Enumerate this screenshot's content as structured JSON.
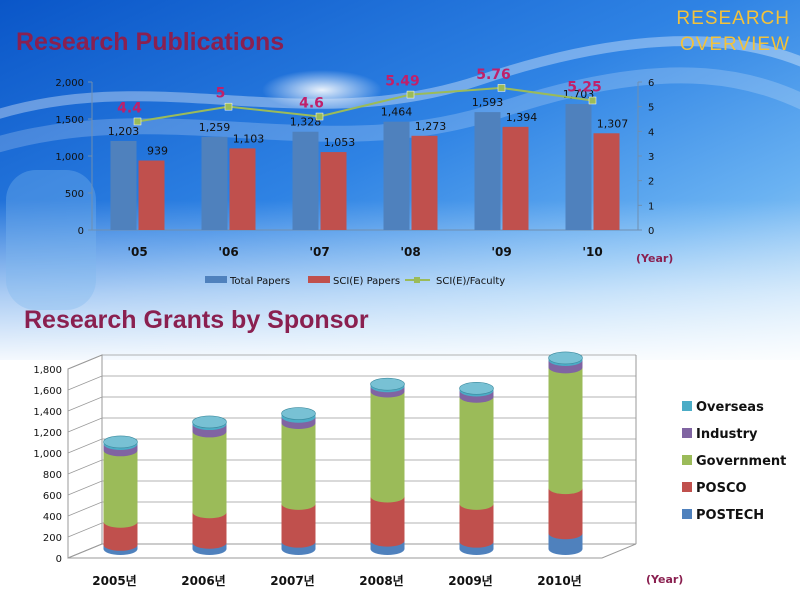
{
  "header": {
    "overview_line1": "RESEARCH",
    "overview_line2": "OVERVIEW"
  },
  "colors": {
    "total": "#4f81bd",
    "sci": "#c0504d",
    "faculty": "#9bbb59",
    "faculty_label": "#c0206a",
    "postech": "#4f81bd",
    "posco": "#c0504d",
    "government": "#9bbb59",
    "industry": "#8064a2",
    "overseas": "#4bacc6",
    "title": "#8a2050",
    "year_label": "#8a2050"
  },
  "chart_data": [
    {
      "type": "bar",
      "title": "Research Publications",
      "categories": [
        "'05",
        "'06",
        "'07",
        "'08",
        "'09",
        "'10"
      ],
      "xlabel": "(Year)",
      "ylim": [
        0,
        2000
      ],
      "yticks": [
        "0",
        "500",
        "1,000",
        "1,500",
        "2,000"
      ],
      "y2lim": [
        0,
        6
      ],
      "y2ticks": [
        "0",
        "1",
        "2",
        "3",
        "4",
        "5",
        "6"
      ],
      "series": [
        {
          "name": "Total Papers",
          "type": "bar",
          "values": [
            1203,
            1259,
            1328,
            1464,
            1593,
            1703
          ],
          "labels": [
            "1,203",
            "1,259",
            "1,328",
            "1,464",
            "1,593",
            "1,703"
          ]
        },
        {
          "name": "SCI(E) Papers",
          "type": "bar",
          "values": [
            939,
            1103,
            1053,
            1273,
            1394,
            1307
          ],
          "labels": [
            "939",
            "1,103",
            "1,053",
            "1,273",
            "1,394",
            "1,307"
          ]
        },
        {
          "name": "SCI(E)/Faculty",
          "type": "line",
          "axis": "right",
          "values": [
            4.4,
            5,
            4.6,
            5.49,
            5.76,
            5.25
          ],
          "labels": [
            "4.4",
            "5",
            "4.6",
            "5.49",
            "5.76",
            "5.25"
          ]
        }
      ],
      "legend": "bottom",
      "grid": false
    },
    {
      "type": "bar",
      "stacked": true,
      "title": "Research Grants by Sponsor",
      "categories": [
        "2005년",
        "2006년",
        "2007년",
        "2008년",
        "2009년",
        "2010년"
      ],
      "xlabel": "(Year)",
      "ylim": [
        0,
        1800
      ],
      "yticks": [
        "0",
        "200",
        "400",
        "600",
        "800",
        "1,000",
        "1,200",
        "1,400",
        "1,600",
        "1,800"
      ],
      "series": [
        {
          "name": "POSTECH",
          "values": [
            40,
            60,
            70,
            80,
            70,
            150
          ]
        },
        {
          "name": "POSCO",
          "values": [
            220,
            290,
            360,
            420,
            360,
            430
          ]
        },
        {
          "name": "Government",
          "values": [
            680,
            770,
            770,
            1000,
            1020,
            1150
          ]
        },
        {
          "name": "Industry",
          "values": [
            60,
            70,
            60,
            50,
            60,
            70
          ]
        },
        {
          "name": "Overseas",
          "values": [
            20,
            20,
            30,
            20,
            20,
            20
          ]
        }
      ],
      "legend": "right",
      "grid": true
    }
  ]
}
